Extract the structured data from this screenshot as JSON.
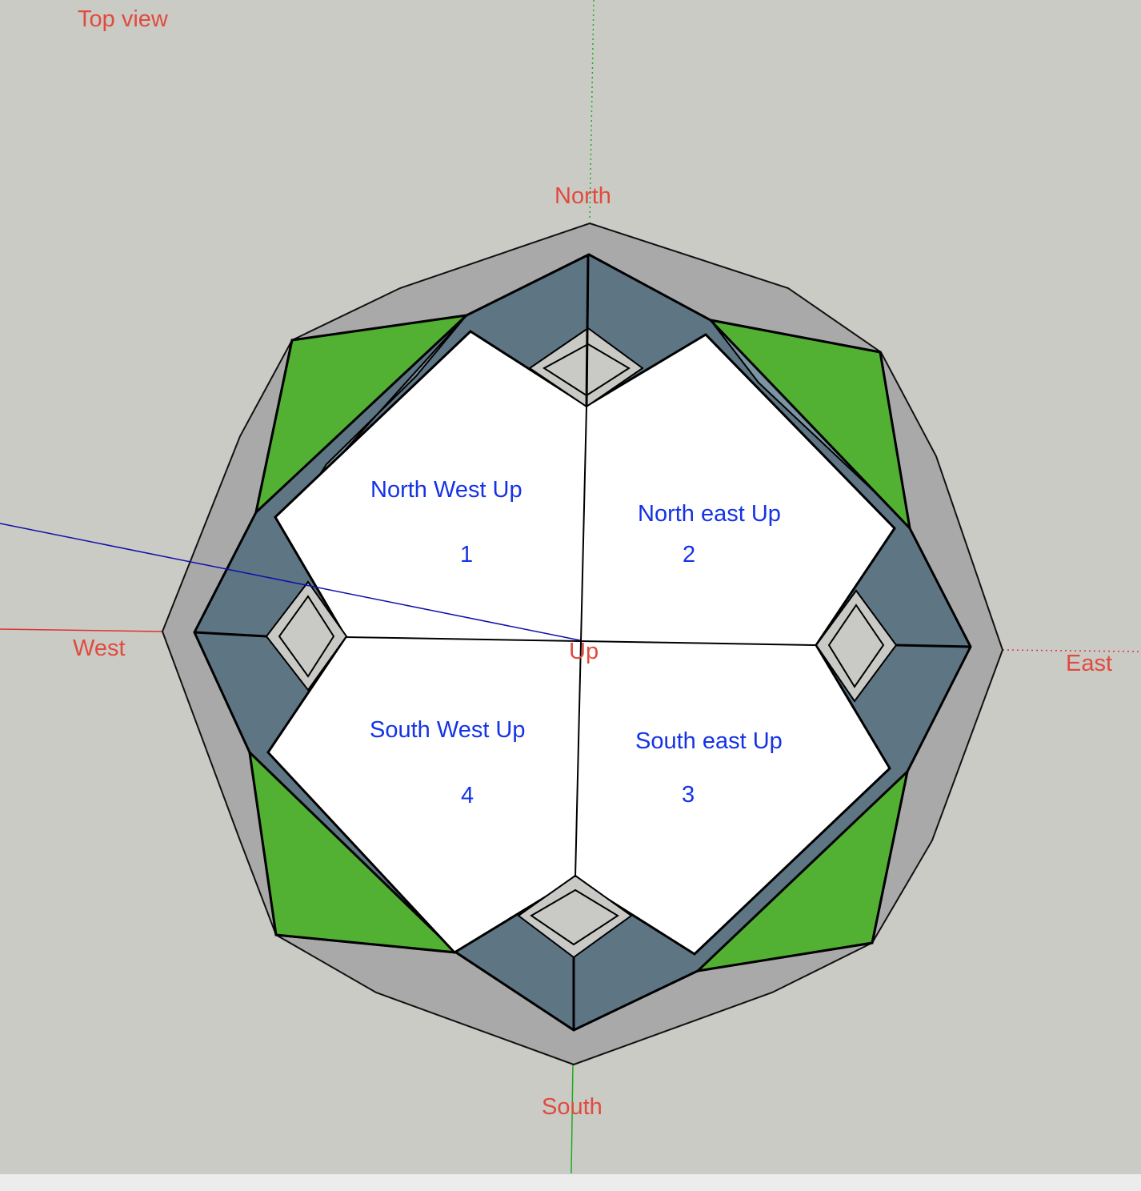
{
  "view": {
    "title": "Top view"
  },
  "directions": {
    "north": "North",
    "south": "South",
    "east": "East",
    "west": "West",
    "center": "Up"
  },
  "faces": [
    {
      "name": "North West Up",
      "number": "1"
    },
    {
      "name": "North east Up",
      "number": "2"
    },
    {
      "name": "South east Up",
      "number": "3"
    },
    {
      "name": "South West Up",
      "number": "4"
    }
  ],
  "colors": {
    "background": "#cbcbc5",
    "outer_ring": "#a9a9a9",
    "slate_panel": "#5e7584",
    "green_panel": "#52b133",
    "light_blue_panel": "#7c95a3",
    "top_face": "#ffffff",
    "label_red": "#e04b3f",
    "label_blue": "#1533e6",
    "axis_red": "#d33",
    "axis_green": "#22aa22",
    "axis_blue": "#1010aa"
  }
}
